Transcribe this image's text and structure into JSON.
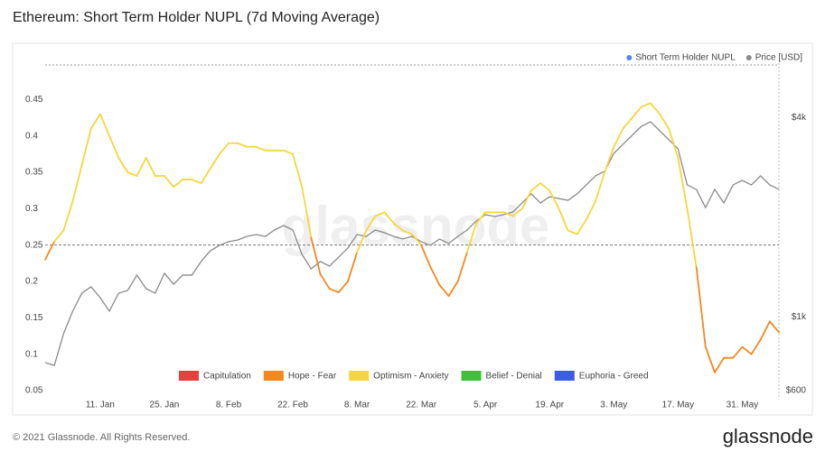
{
  "chart_data": {
    "type": "line",
    "title": "Ethereum: Short Term Holder NUPL (7d Moving Average)",
    "footer": "© 2021 Glassnode. All Rights Reserved.",
    "logo": "glassnode",
    "watermark": "glassnode",
    "categories": [
      null,
      null,
      null,
      null,
      null,
      null,
      "11. Jan",
      null,
      null,
      null,
      null,
      null,
      null,
      "25. Jan",
      null,
      null,
      null,
      null,
      null,
      null,
      "8. Feb",
      null,
      null,
      null,
      null,
      null,
      null,
      "22. Feb",
      null,
      null,
      null,
      null,
      null,
      null,
      "8. Mar",
      null,
      null,
      null,
      null,
      null,
      null,
      "22. Mar",
      null,
      null,
      null,
      null,
      null,
      null,
      "5. Apr",
      null,
      null,
      null,
      null,
      null,
      null,
      "19. Apr",
      null,
      null,
      null,
      null,
      null,
      null,
      "3. May",
      null,
      null,
      null,
      null,
      null,
      null,
      "17. May",
      null,
      null,
      null,
      null,
      null,
      null,
      "31. May",
      null,
      null,
      null,
      null
    ],
    "series": [
      {
        "name": "Short Term Holder NUPL",
        "color": "#5a80f0",
        "axis": "y",
        "values": [
          0.23,
          0.255,
          0.27,
          0.31,
          0.36,
          0.41,
          0.43,
          0.4,
          0.37,
          0.35,
          0.345,
          0.37,
          0.345,
          0.345,
          0.33,
          0.34,
          0.34,
          0.335,
          0.355,
          0.375,
          0.39,
          0.39,
          0.385,
          0.385,
          0.38,
          0.38,
          0.38,
          0.375,
          0.33,
          0.26,
          0.21,
          0.19,
          0.185,
          0.2,
          0.24,
          0.27,
          0.29,
          0.295,
          0.28,
          0.27,
          0.265,
          0.25,
          0.22,
          0.195,
          0.18,
          0.2,
          0.24,
          0.28,
          0.295,
          0.295,
          0.295,
          0.29,
          0.3,
          0.325,
          0.335,
          0.325,
          0.3,
          0.27,
          0.265,
          0.285,
          0.31,
          0.35,
          0.385,
          0.41,
          0.425,
          0.44,
          0.445,
          0.43,
          0.41,
          0.37,
          0.3,
          0.22,
          0.11,
          0.075,
          0.095,
          0.095,
          0.11,
          0.1,
          0.12,
          0.145,
          0.13
        ]
      },
      {
        "name": "Price [USD]",
        "color": "#8a8a8a",
        "axis": "y2",
        "values": [
          729,
          715,
          891,
          1042,
          1181,
          1235,
          1145,
          1042,
          1181,
          1204,
          1340,
          1219,
          1181,
          1357,
          1258,
          1340,
          1340,
          1472,
          1586,
          1648,
          1690,
          1711,
          1754,
          1776,
          1754,
          1833,
          1891,
          1833,
          1547,
          1399,
          1472,
          1426,
          1518,
          1617,
          1776,
          1754,
          1833,
          1799,
          1754,
          1722,
          1754,
          1690,
          1648,
          1722,
          1669,
          1754,
          1833,
          1952,
          2040,
          2014,
          2040,
          2078,
          2213,
          2356,
          2213,
          2311,
          2282,
          2254,
          2356,
          2509,
          2671,
          2756,
          3124,
          3327,
          3542,
          3771,
          3892,
          3654,
          3433,
          3224,
          2509,
          2431,
          2144,
          2431,
          2213,
          2509,
          2588,
          2509,
          2671,
          2509,
          2431
        ]
      }
    ],
    "zones": [
      {
        "name": "Capitulation",
        "color": "#e8403a"
      },
      {
        "name": "Hope - Fear",
        "color": "#f5871f"
      },
      {
        "name": "Optimism - Anxiety",
        "color": "#f5d63d"
      },
      {
        "name": "Belief - Denial",
        "color": "#3cc13b"
      },
      {
        "name": "Euphoria - Greed",
        "color": "#3b5ee8"
      }
    ],
    "reference_line": 0.25,
    "ylim": [
      0.05,
      0.5
    ],
    "yticks": [
      0.05,
      0.1,
      0.15,
      0.2,
      0.25,
      0.3,
      0.35,
      0.4,
      0.45
    ],
    "y2lim": [
      600,
      5850
    ],
    "y2log": true,
    "y2ticks": [
      {
        "value": 600,
        "label": "$600"
      },
      {
        "value": 1000,
        "label": "$1k"
      },
      {
        "value": 4000,
        "label": "$4k"
      }
    ],
    "grid": false
  }
}
